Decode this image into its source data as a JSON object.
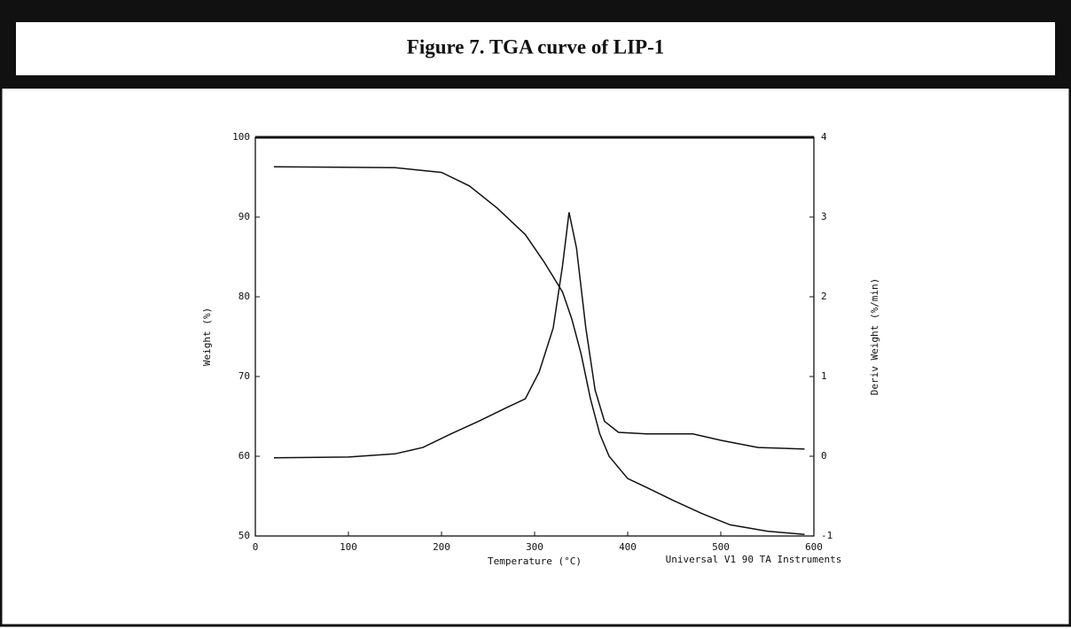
{
  "chart_data": {
    "type": "line",
    "title": "Figure 7.  TGA curve of LIP-1",
    "x_label": "Temperature (°C)",
    "y_label": "Weight (%)",
    "y2_label": "Deriv  Weight (%/min)",
    "annotation": "Universal V1 90 TA Instruments",
    "xlim": [
      0,
      600
    ],
    "xticks": [
      0,
      100,
      200,
      300,
      400,
      500,
      600
    ],
    "ylim": [
      50,
      100
    ],
    "yticks": [
      50,
      60,
      70,
      80,
      90,
      100
    ],
    "y2lim": [
      -1,
      4
    ],
    "y2ticks": [
      -1,
      0,
      1,
      2,
      3,
      4
    ],
    "series": [
      {
        "color": "#111111",
        "x": [
          20,
          150,
          200,
          230,
          260,
          290,
          310,
          330,
          340,
          350,
          360,
          370,
          380,
          400,
          420,
          450,
          480,
          510,
          550,
          590
        ],
        "values": [
          96.3,
          96.2,
          95.6,
          93.9,
          91.1,
          87.8,
          84.4,
          80.6,
          77.2,
          72.8,
          67.2,
          62.8,
          60,
          57.2,
          56.1,
          54.4,
          52.8,
          51.4,
          50.6,
          50.2
        ]
      },
      {
        "color": "#111111",
        "axis": "y2",
        "x": [
          20,
          100,
          150,
          180,
          210,
          240,
          270,
          290,
          305,
          320,
          330,
          337,
          345,
          355,
          365,
          375,
          390,
          420,
          470,
          500,
          540,
          590
        ],
        "values": [
          -0.02,
          -0.01,
          0.03,
          0.11,
          0.28,
          0.44,
          0.61,
          0.72,
          1.06,
          1.61,
          2.39,
          3.06,
          2.61,
          1.61,
          0.83,
          0.44,
          0.3,
          0.28,
          0.28,
          0.2,
          0.11,
          0.09
        ]
      }
    ]
  }
}
